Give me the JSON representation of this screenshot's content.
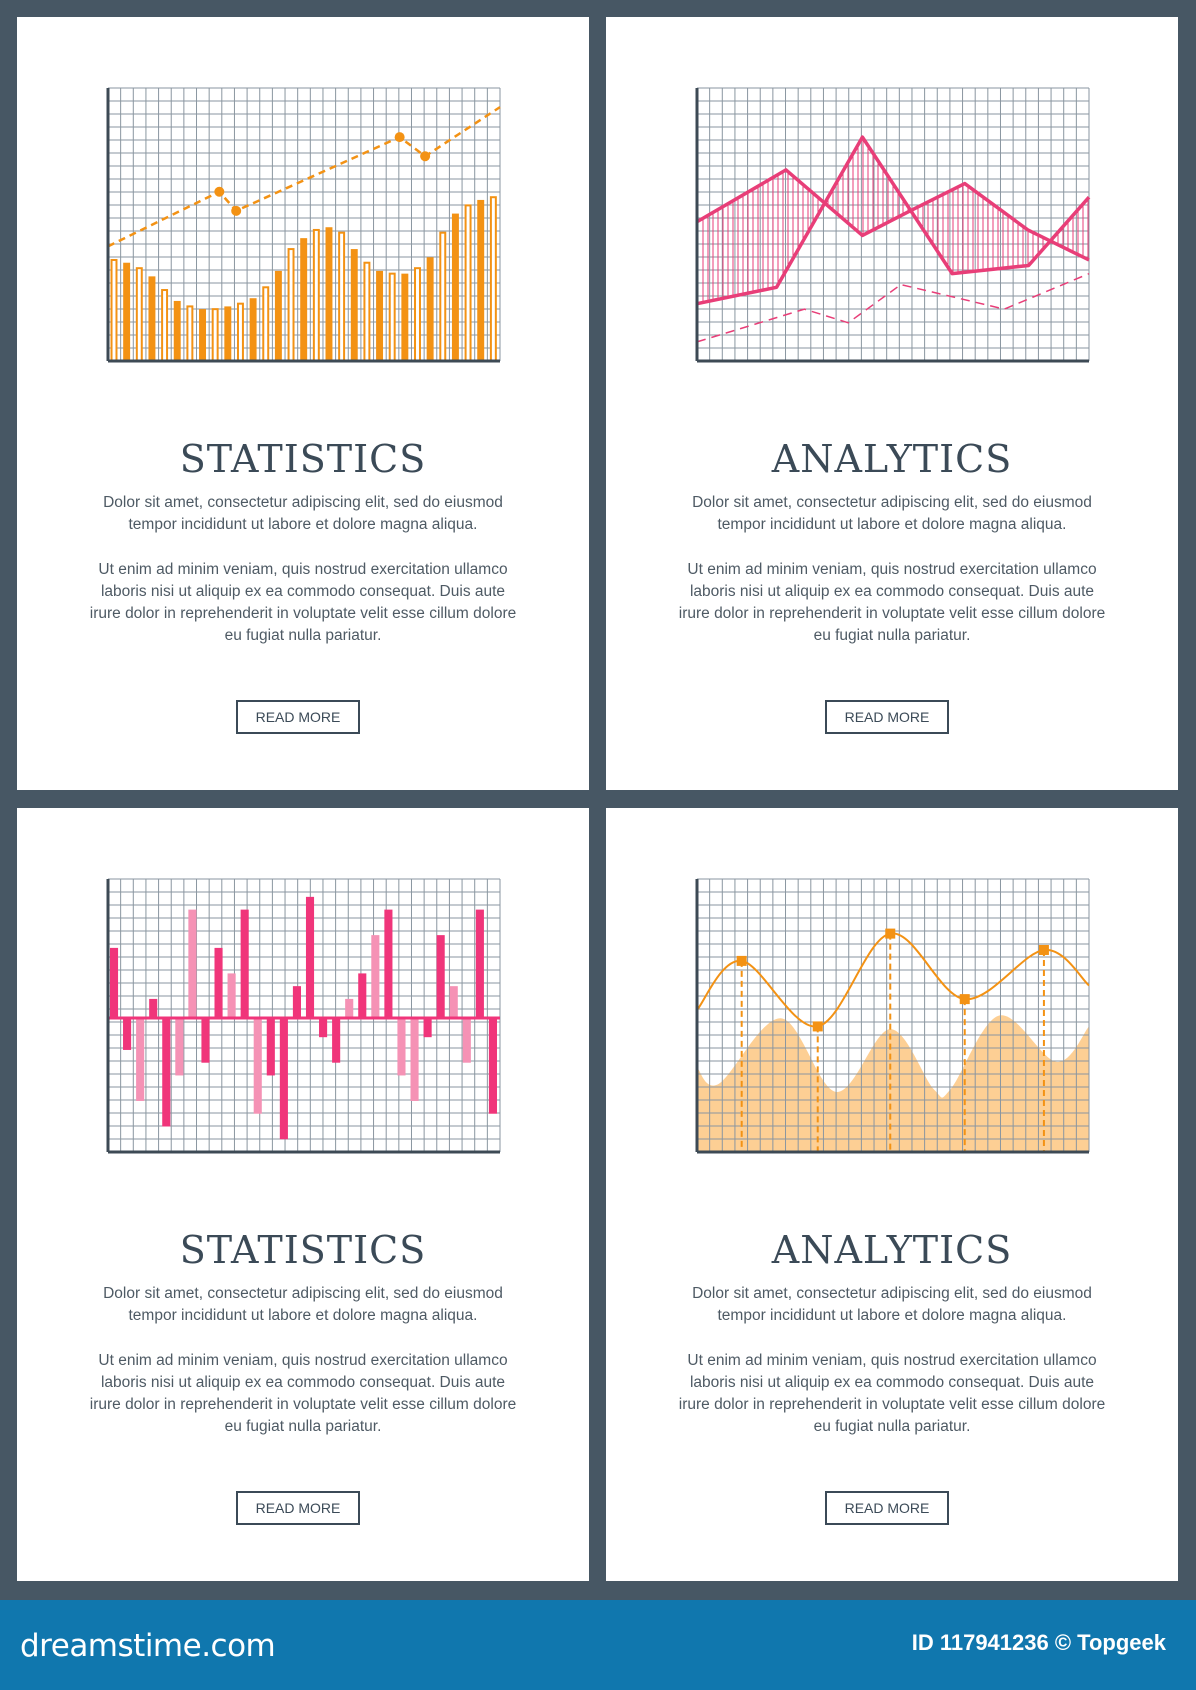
{
  "colors": {
    "background": "#475764",
    "card": "#ffffff",
    "grid": "#8a96a0",
    "axis": "#3d4a55",
    "orange": "#f39214",
    "orange_fill": "#fdcf94",
    "pink": "#e83e78",
    "pink_light": "#f592b5",
    "pink_dark": "#f0357a",
    "text": "#3b4a57",
    "footer": "#1077ae"
  },
  "cards": [
    {
      "title": "STATISTICS",
      "paragraphs": [
        [
          "Dolor sit amet, consectetur adipiscing elit, sed do eiusmod",
          "tempor incididunt ut labore et dolore magna aliqua."
        ],
        [
          "Ut enim ad minim veniam, quis nostrud exercitation ullamco",
          "laboris nisi ut aliquip ex ea commodo consequat. Duis aute",
          "irure dolor in reprehenderit in voluptate velit esse cillum dolore",
          "eu fugiat nulla pariatur."
        ]
      ],
      "button": "READ MORE"
    },
    {
      "title": "ANALYTICS",
      "paragraphs": [
        [
          "Dolor sit amet, consectetur adipiscing elit, sed do eiusmod",
          "tempor incididunt ut labore et dolore magna aliqua."
        ],
        [
          "Ut enim ad minim veniam, quis nostrud exercitation ullamco",
          "laboris nisi ut aliquip ex ea commodo consequat. Duis aute",
          "irure dolor in reprehenderit in voluptate velit esse cillum dolore",
          "eu fugiat nulla pariatur."
        ]
      ],
      "button": "READ MORE"
    },
    {
      "title": "STATISTICS",
      "paragraphs": [
        [
          "Dolor sit amet, consectetur adipiscing elit, sed do eiusmod",
          "tempor incididunt ut labore et dolore magna aliqua."
        ],
        [
          "Ut enim ad minim veniam, quis nostrud exercitation ullamco",
          "laboris nisi ut aliquip ex ea commodo consequat. Duis aute",
          "irure dolor in reprehenderit in voluptate velit esse cillum dolore",
          "eu fugiat nulla pariatur."
        ]
      ],
      "button": "READ MORE"
    },
    {
      "title": "ANALYTICS",
      "paragraphs": [
        [
          "Dolor sit amet, consectetur adipiscing elit, sed do eiusmod",
          "tempor incididunt ut labore et dolore magna aliqua."
        ],
        [
          "Ut enim ad minim veniam, quis nostrud exercitation ullamco",
          "laboris nisi ut aliquip ex ea commodo consequat. Duis aute",
          "irure dolor in reprehenderit in voluptate velit esse cillum dolore",
          "eu fugiat nulla pariatur."
        ]
      ],
      "button": "READ MORE"
    }
  ],
  "chart_data": [
    {
      "type": "bar",
      "grid": true,
      "ylim": [
        0,
        100
      ],
      "values": [
        37,
        36,
        34,
        31,
        26,
        22,
        20,
        19,
        19,
        20,
        21,
        23,
        27,
        33,
        41,
        45,
        48,
        49,
        47,
        41,
        36,
        33,
        32,
        32,
        34,
        38,
        47,
        54,
        57,
        59,
        60
      ],
      "bar_style_pattern": [
        "outline",
        "filled"
      ],
      "overlay_line": {
        "style": "dashed",
        "x": [
          0,
          0.284,
          0.327,
          0.744,
          0.809,
          1
        ],
        "y": [
          42,
          62,
          55,
          82,
          75,
          93
        ],
        "markers_at": [
          1,
          2,
          3,
          4
        ]
      }
    },
    {
      "type": "line",
      "grid": true,
      "ylim": [
        0,
        100
      ],
      "series": [
        {
          "style": "solid",
          "x": [
            0,
            0.227,
            0.422,
            0.544,
            0.683,
            0.844,
            1
          ],
          "y": [
            51,
            70,
            46,
            55,
            65,
            48,
            37
          ]
        },
        {
          "style": "solid",
          "x": [
            0,
            0.203,
            0.422,
            0.651,
            0.846,
            1
          ],
          "y": [
            21,
            27,
            82,
            32,
            35,
            60
          ]
        },
        {
          "style": "dashed",
          "x": [
            0,
            0.274,
            0.386,
            0.52,
            0.784,
            1
          ],
          "y": [
            7,
            19,
            14,
            28,
            19,
            32
          ]
        }
      ],
      "fill_between": [
        0,
        1
      ],
      "fill_style": "vertical-hatch"
    },
    {
      "type": "bar",
      "grid": true,
      "ylim": [
        -10.5,
        10.9
      ],
      "values": [
        5.5,
        -2.5,
        -6.5,
        1.5,
        -8.5,
        -4.5,
        8.5,
        -3.5,
        5.5,
        3.5,
        8.5,
        -7.5,
        -4.5,
        -9.5,
        2.5,
        9.5,
        -1.5,
        -3.5,
        1.5,
        3.5,
        6.5,
        8.5,
        -4.5,
        -6.5,
        -1.5,
        6.5,
        2.5,
        -3.5,
        8.5,
        -7.5
      ],
      "shades": [
        "dark",
        "dark",
        "light",
        "dark",
        "dark",
        "light",
        "light",
        "dark",
        "dark",
        "light",
        "dark",
        "light",
        "dark",
        "dark",
        "dark",
        "dark",
        "dark",
        "dark",
        "light",
        "dark",
        "light",
        "dark",
        "light",
        "light",
        "dark",
        "dark",
        "light",
        "light",
        "dark",
        "dark"
      ]
    },
    {
      "type": "area",
      "grid": true,
      "ylim": [
        0,
        100
      ],
      "area": {
        "x": [
          0,
          0.056,
          0.214,
          0.356,
          0.493,
          0.604,
          0.647,
          0.771,
          0.917,
          1
        ],
        "y": [
          31,
          25,
          49,
          22,
          45,
          23,
          23,
          50,
          33,
          46
        ]
      },
      "line": {
        "style": "smooth",
        "x": [
          0,
          0.114,
          0.308,
          0.493,
          0.683,
          0.885,
          1
        ],
        "y": [
          52,
          70,
          46,
          80,
          56,
          74,
          61
        ]
      },
      "markers": {
        "x": [
          0.114,
          0.308,
          0.493,
          0.683,
          0.885
        ],
        "y": [
          70,
          46,
          80,
          56,
          74
        ],
        "drop_lines": "dashed"
      }
    }
  ],
  "footer": {
    "logo": "dreamstime.com",
    "credit": "ID 117941236 © Topgeek"
  }
}
